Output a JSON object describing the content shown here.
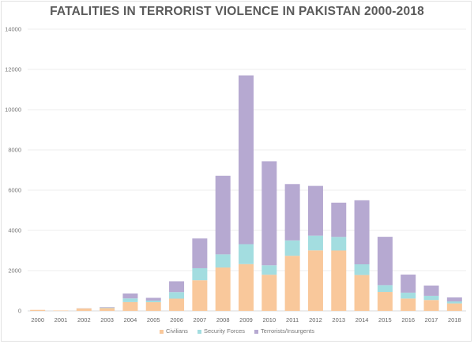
{
  "chart_data": {
    "type": "bar",
    "stacked": true,
    "title": "FATALITIES IN TERRORIST VIOLENCE IN PAKISTAN 2000-2018",
    "xlabel": "",
    "ylabel": "",
    "ylim": [
      0,
      14000
    ],
    "yticks": [
      0,
      2000,
      4000,
      6000,
      8000,
      10000,
      12000,
      14000
    ],
    "grid": true,
    "legend_position": "bottom",
    "categories": [
      "2000",
      "2001",
      "2002",
      "2003",
      "2004",
      "2005",
      "2006",
      "2007",
      "2008",
      "2009",
      "2010",
      "2011",
      "2012",
      "2013",
      "2014",
      "2015",
      "2016",
      "2017",
      "2018"
    ],
    "series": [
      {
        "name": "Civilians",
        "color": "#f9c89b",
        "values": [
          50,
          20,
          120,
          140,
          435,
          430,
          608,
          1522,
          2155,
          2324,
          1796,
          2738,
          3007,
          3001,
          1781,
          940,
          612,
          540,
          370
        ]
      },
      {
        "name": "Security Forces",
        "color": "#a3dde0",
        "values": [
          0,
          0,
          5,
          24,
          184,
          81,
          325,
          597,
          654,
          991,
          469,
          765,
          732,
          676,
          533,
          339,
          293,
          208,
          100
        ]
      },
      {
        "name": "Terrorists/Insurgents",
        "color": "#b6a9d1",
        "values": [
          0,
          0,
          5,
          25,
          244,
          137,
          538,
          1479,
          3906,
          8389,
          5170,
          2800,
          2472,
          1702,
          3182,
          2403,
          898,
          512,
          200
        ]
      }
    ]
  }
}
